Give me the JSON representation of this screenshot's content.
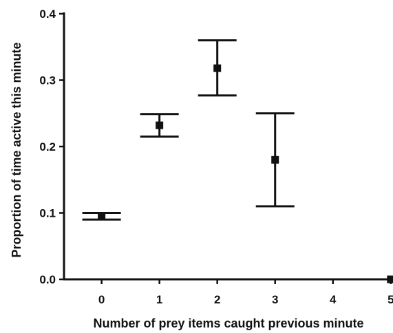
{
  "chart_data": {
    "type": "scatter",
    "title": "",
    "xlabel": "Number of prey items caught previous minute",
    "ylabel": "Proportion of time active this minute",
    "xlim": [
      -0.65,
      5.05
    ],
    "ylim": [
      0.0,
      0.4
    ],
    "x_ticks": [
      "0",
      "1",
      "2",
      "3",
      "4",
      "5"
    ],
    "y_ticks": [
      "0.0",
      "0.1",
      "0.2",
      "0.3",
      "0.4"
    ],
    "grid": false,
    "series": [
      {
        "marker": "square",
        "color": "#111111",
        "points": [
          {
            "x": 0,
            "y": 0.095,
            "err_low": 0.09,
            "err_high": 0.1
          },
          {
            "x": 1,
            "y": 0.232,
            "err_low": 0.215,
            "err_high": 0.249
          },
          {
            "x": 2,
            "y": 0.318,
            "err_low": 0.277,
            "err_high": 0.36
          },
          {
            "x": 3,
            "y": 0.18,
            "err_low": 0.11,
            "err_high": 0.25
          },
          {
            "x": 5,
            "y": 0.0
          }
        ]
      }
    ]
  }
}
